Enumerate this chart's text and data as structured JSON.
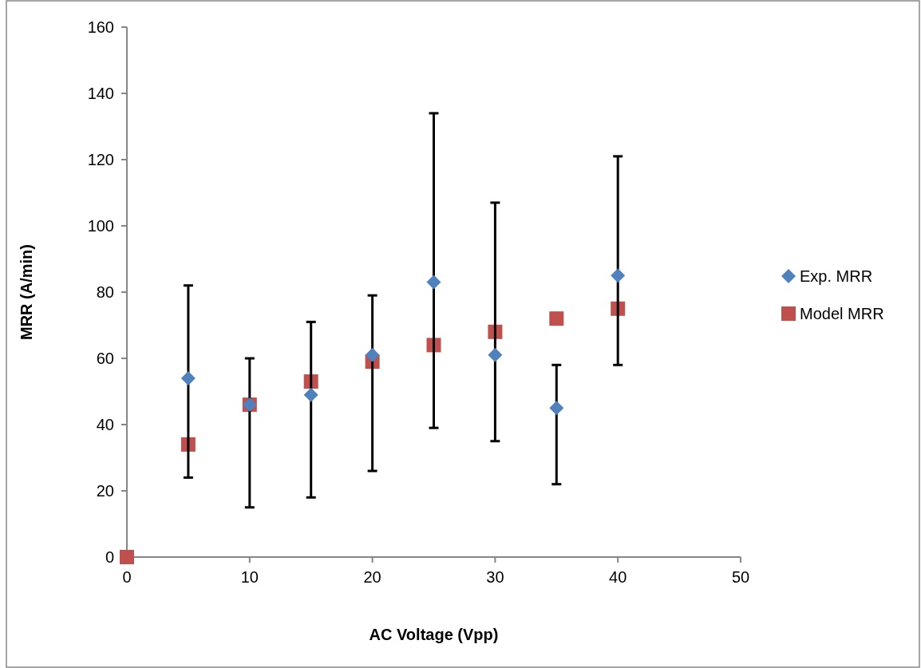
{
  "chart_data": {
    "type": "scatter",
    "xlabel": "AC Voltage (Vpp)",
    "ylabel": "MRR (A/min)",
    "xlim": [
      0,
      50
    ],
    "xticks": [
      0,
      10,
      20,
      30,
      40,
      50
    ],
    "ylim": [
      0,
      160
    ],
    "yticks": [
      0,
      20,
      40,
      60,
      80,
      100,
      120,
      140,
      160
    ],
    "grid": false,
    "legend": "right",
    "series": [
      {
        "name": "Exp. MRR",
        "color": "#4f81bd",
        "marker": "diamond",
        "x": [
          5,
          10,
          15,
          20,
          25,
          30,
          35,
          40
        ],
        "values": [
          54,
          46,
          49,
          61,
          83,
          61,
          45,
          85
        ],
        "errors": [
          [
            24,
            82
          ],
          [
            15,
            60
          ],
          [
            18,
            71
          ],
          [
            26,
            79
          ],
          [
            39,
            134
          ],
          [
            35,
            107
          ],
          [
            22,
            58
          ],
          [
            58,
            121
          ]
        ]
      },
      {
        "name": "Model MRR",
        "color": "#c0504d",
        "marker": "square",
        "x": [
          0,
          5,
          10,
          15,
          20,
          25,
          30,
          35,
          40
        ],
        "values": [
          0,
          34,
          46,
          53,
          59,
          64,
          68,
          72,
          75
        ]
      }
    ]
  }
}
